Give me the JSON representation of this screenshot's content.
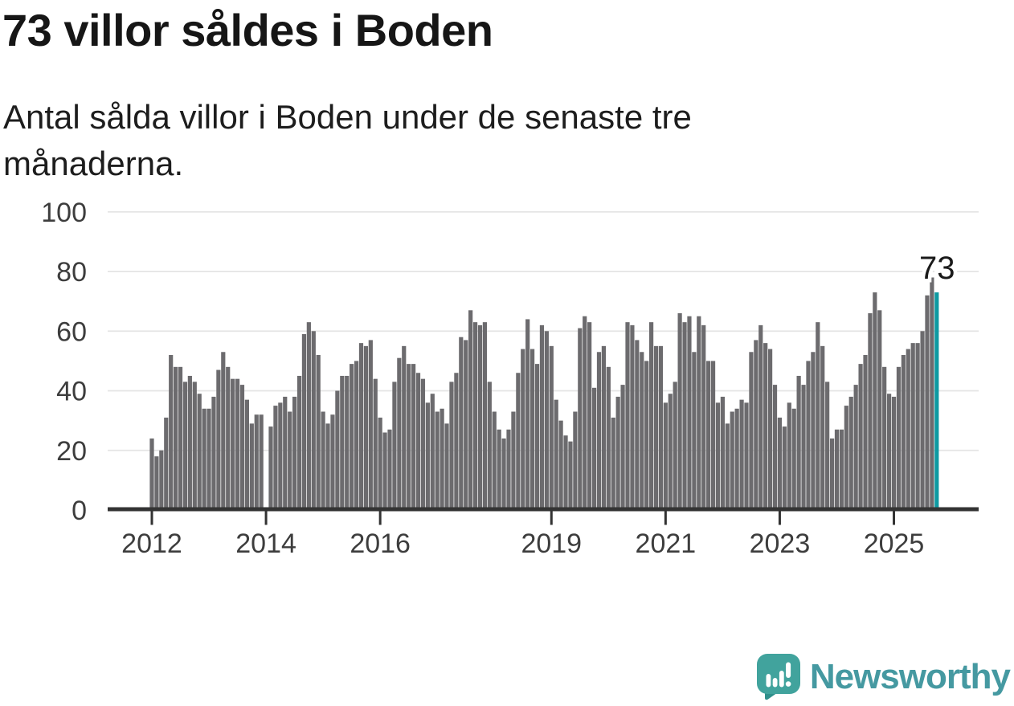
{
  "header": {
    "title": "73 villor såldes i Boden",
    "subtitle_line1": "Antal sålda villor i Boden under de senaste tre",
    "subtitle_line2": "månaderna."
  },
  "branding": {
    "wordmark": "Newsworthy",
    "icon": "newsworthy-speech-bubble-bar-chart-icon",
    "wordmark_color": "#4599a1",
    "icon_color": "#41a39d",
    "icon_tail_color": "#2f8f8b"
  },
  "chart_data": {
    "type": "bar",
    "title": "73 villor såldes i Boden",
    "subtitle": "Antal sålda villor i Boden under de senaste tre månaderna.",
    "start_month": "2012-01",
    "frequency": "monthly-rolling-3-month-sum",
    "ylim": [
      0,
      100
    ],
    "yticks": [
      0,
      20,
      40,
      60,
      80,
      100
    ],
    "grid": true,
    "legend": null,
    "bar_color": "#6c6b6e",
    "highlight_color": "#0e9aa2",
    "axis_color": "#333333",
    "gridline_color": "#e5e5e5",
    "tick_label_color": "#3d3d3d",
    "annotation": {
      "label": "73",
      "month_index": 165
    },
    "highlight_index": 165,
    "x_ticks": [
      {
        "label": "2012",
        "month_index": 0
      },
      {
        "label": "2014",
        "month_index": 24
      },
      {
        "label": "2016",
        "month_index": 48
      },
      {
        "label": "2019",
        "month_index": 84
      },
      {
        "label": "2021",
        "month_index": 108
      },
      {
        "label": "2023",
        "month_index": 132
      },
      {
        "label": "2025",
        "month_index": 156
      }
    ],
    "values": [
      24,
      18,
      20,
      31,
      52,
      48,
      48,
      43,
      45,
      43,
      39,
      34,
      34,
      38,
      47,
      53,
      48,
      44,
      44,
      42,
      37,
      29,
      32,
      32,
      null,
      28,
      35,
      36,
      38,
      33,
      38,
      45,
      59,
      63,
      60,
      52,
      33,
      29,
      32,
      40,
      45,
      45,
      49,
      50,
      56,
      55,
      57,
      44,
      31,
      26,
      27,
      43,
      51,
      55,
      49,
      49,
      46,
      44,
      36,
      39,
      33,
      34,
      29,
      43,
      46,
      58,
      57,
      67,
      63,
      62,
      63,
      43,
      33,
      27,
      24,
      27,
      33,
      46,
      54,
      64,
      54,
      49,
      62,
      60,
      55,
      37,
      30,
      25,
      23,
      33,
      61,
      65,
      63,
      41,
      53,
      55,
      48,
      31,
      38,
      42,
      63,
      62,
      57,
      53,
      50,
      63,
      55,
      55,
      36,
      39,
      43,
      66,
      63,
      65,
      53,
      65,
      62,
      50,
      50,
      36,
      38,
      29,
      33,
      34,
      37,
      36,
      53,
      57,
      62,
      56,
      54,
      42,
      31,
      28,
      36,
      34,
      45,
      42,
      50,
      53,
      63,
      55,
      43,
      24,
      27,
      27,
      35,
      38,
      42,
      49,
      52,
      66,
      73,
      67,
      48,
      39,
      38,
      48,
      52,
      54,
      56,
      56,
      60,
      72,
      78,
      73
    ]
  }
}
